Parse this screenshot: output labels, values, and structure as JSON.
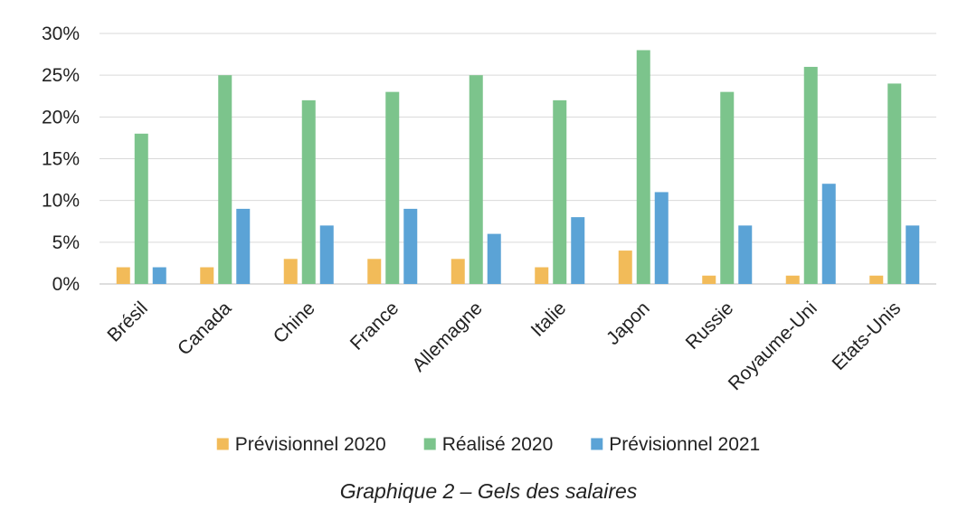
{
  "caption": "Graphique 2 – Gels des salaires",
  "chart_data": {
    "type": "bar",
    "categories": [
      "Brésil",
      "Canada",
      "Chine",
      "France",
      "Allemagne",
      "Italie",
      "Japon",
      "Russie",
      "Royaume-Uni",
      "Etats-Unis"
    ],
    "series": [
      {
        "name": "Prévisionnel 2020",
        "color": "#F2BB59",
        "values": [
          2,
          2,
          3,
          3,
          3,
          2,
          4,
          1,
          1,
          1
        ]
      },
      {
        "name": "Réalisé 2020",
        "color": "#7CC48C",
        "values": [
          18,
          25,
          22,
          23,
          25,
          22,
          28,
          23,
          26,
          24
        ]
      },
      {
        "name": "Prévisionnel 2021",
        "color": "#5BA3D6",
        "values": [
          2,
          9,
          7,
          9,
          6,
          8,
          11,
          7,
          12,
          7
        ]
      }
    ],
    "y_ticks": [
      "0%",
      "5%",
      "10%",
      "15%",
      "20%",
      "25%",
      "30%"
    ],
    "ylim": [
      0,
      30
    ],
    "y_unit": "%",
    "grid": true,
    "legend_position": "bottom"
  }
}
